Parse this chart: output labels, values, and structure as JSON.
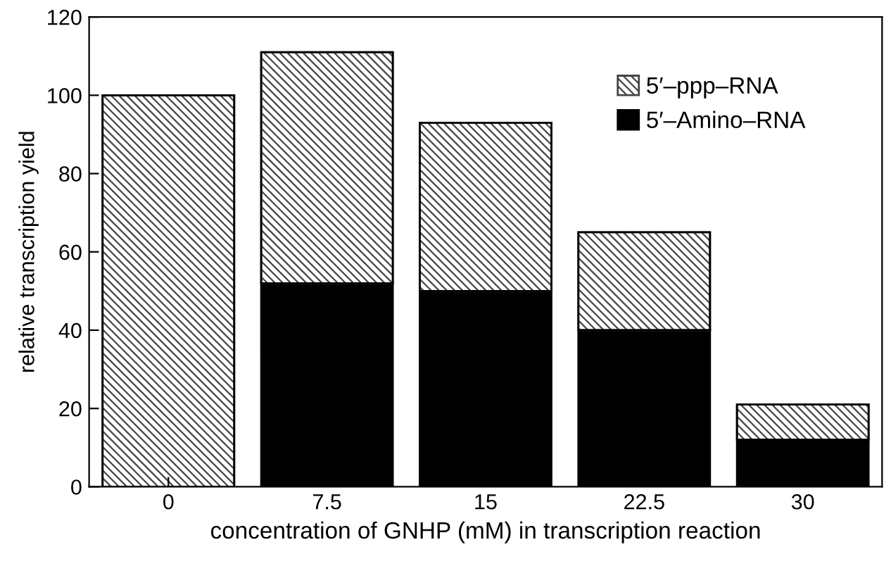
{
  "chart_data": {
    "type": "bar",
    "stacked": true,
    "xlabel": "concentration of GNHP (mM) in transcription reaction",
    "ylabel": "relative transcription yield",
    "categories": [
      "0",
      "7.5",
      "15",
      "22.5",
      "30"
    ],
    "series": [
      {
        "name": "5′–Amino–RNA",
        "color": "#000000",
        "values": [
          0,
          52,
          50,
          40,
          12
        ]
      },
      {
        "name": "5′–ppp–RNA",
        "color": "#444444",
        "values": [
          100,
          59,
          43,
          25,
          9
        ]
      }
    ],
    "ylim": [
      0,
      120
    ],
    "yticks": [
      0,
      20,
      40,
      60,
      80,
      100,
      120
    ],
    "grid": false,
    "legend": "top right"
  }
}
